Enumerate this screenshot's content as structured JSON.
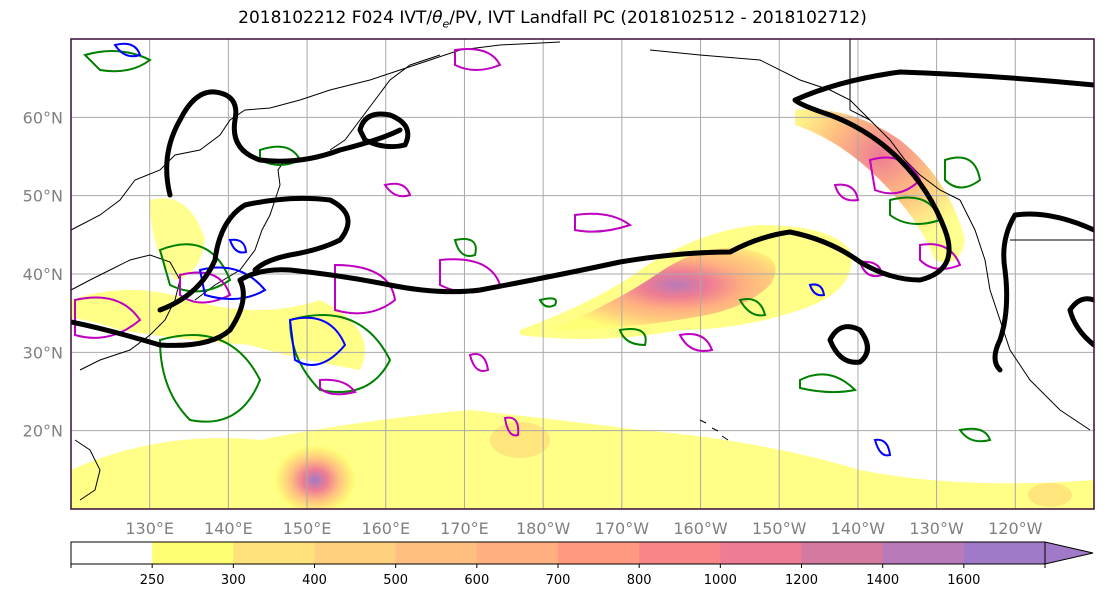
{
  "title": {
    "prefix": "2018102212 F024 IVT/",
    "theta": "θ",
    "theta_sub": "e",
    "suffix": "/PV, IVT Landfall PC (2018102512 - 2018102712)"
  },
  "map": {
    "projection": "equirectangular",
    "lon_range_east": [
      120,
      250
    ],
    "lat_range": [
      10,
      70
    ],
    "lat_ticks": [
      "20°N",
      "30°N",
      "40°N",
      "50°N",
      "60°N"
    ],
    "lat_tick_values": [
      20,
      30,
      40,
      50,
      60
    ],
    "lon_ticks": [
      "130°E",
      "140°E",
      "150°E",
      "160°E",
      "170°E",
      "180°W",
      "170°W",
      "160°W",
      "150°W",
      "140°W",
      "130°W",
      "120°W"
    ],
    "lon_tick_values": [
      130,
      140,
      150,
      160,
      170,
      180,
      190,
      200,
      210,
      220,
      230,
      240
    ],
    "grid": true,
    "colors": {
      "land_outline": "#000000",
      "pc_contour": "#000000",
      "green_contour": "#008000",
      "magenta_contour": "#c000c0",
      "blue_contour": "#0000ff",
      "grid": "#a9a9a9"
    }
  },
  "colorbar": {
    "levels": [
      "250",
      "300",
      "400",
      "500",
      "600",
      "700",
      "800",
      "1000",
      "1200",
      "1400",
      "1600"
    ],
    "colors": [
      "#ffffff",
      "#ffff73",
      "#ffe27a",
      "#ffd07d",
      "#ffbf80",
      "#ffaf80",
      "#ff9a80",
      "#f98588",
      "#ee7c94",
      "#d47aa0",
      "#b87ab8",
      "#a07ac8"
    ],
    "extend": "max"
  }
}
